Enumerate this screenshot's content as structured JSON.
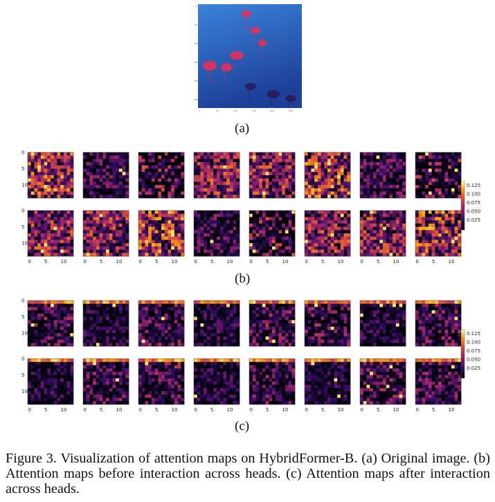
{
  "figure": {
    "subfigures": [
      {
        "id": "a",
        "label": "(a)"
      },
      {
        "id": "b",
        "label": "(b)"
      },
      {
        "id": "c",
        "label": "(c)"
      }
    ],
    "axis_ticks": {
      "y": [
        "0",
        "5",
        "10"
      ],
      "x": [
        "0",
        "5",
        "10"
      ]
    },
    "colorbar_ticks": [
      "0.125",
      "0.100",
      "0.075",
      "0.050",
      "0.025"
    ],
    "colormap": {
      "stops": [
        "#000004",
        "#2a0b59",
        "#6a176e",
        "#a52c60",
        "#dd513a",
        "#f6a10c",
        "#fcffa4"
      ]
    },
    "original_image_colors": {
      "water_top": "#3a7ed6",
      "water_bottom": "#1a3f9a",
      "jelly": "#e0305a"
    }
  },
  "caption": "Figure 3.  Visualization of attention maps on HybridFormer-B. (a) Original image. (b) Attention maps before interaction across heads. (c) Attention maps after interaction across heads."
}
